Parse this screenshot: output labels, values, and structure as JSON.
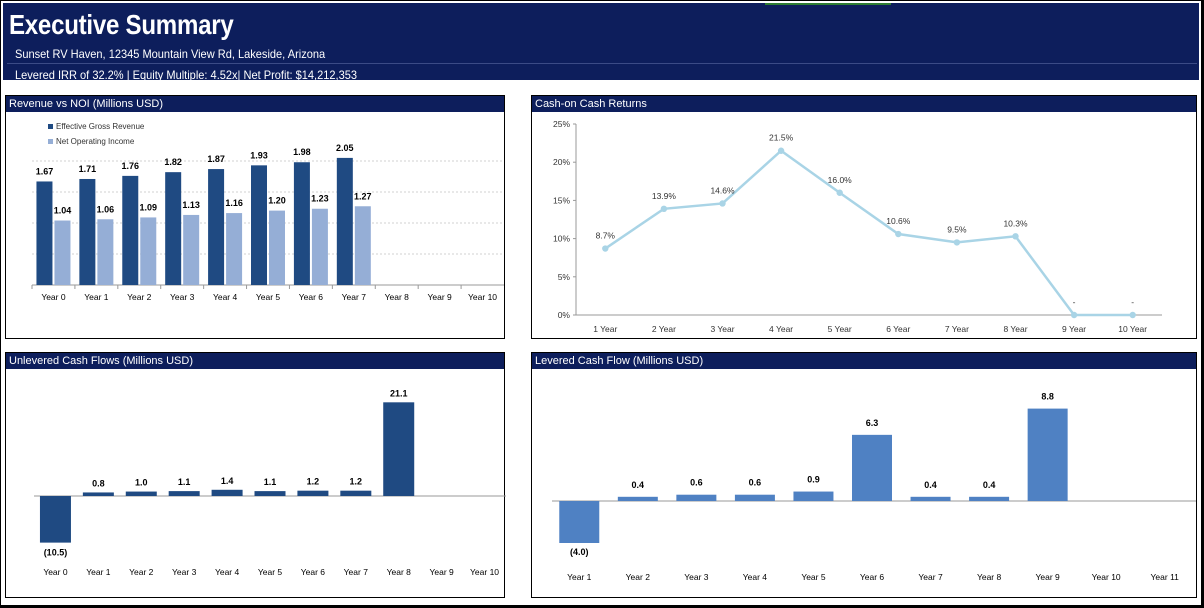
{
  "header": {
    "title": "Executive Summary",
    "address": "Sunset RV Haven, 12345 Mountain View Rd, Lakeside, Arizona",
    "metrics": "Levered IRR of 32.2% | Equity Multiple: 4.52x| Net Profit: $14,212,353"
  },
  "colors": {
    "header_bg": "#0d1e5c",
    "dark_bar": "#1f4a82",
    "light_bar": "#95aed6",
    "line": "#a9d4e6",
    "levered_bar": "#4f81c3"
  },
  "chart_data": [
    {
      "id": "revenue_noi",
      "type": "bar",
      "title": "Revenue vs NOI (Millions USD)",
      "categories": [
        "Year 0",
        "Year 1",
        "Year 2",
        "Year 3",
        "Year 4",
        "Year 5",
        "Year 6",
        "Year 7",
        "Year 8",
        "Year 9",
        "Year 10"
      ],
      "series": [
        {
          "name": "Effective Gross Revenue",
          "values": [
            1.67,
            1.71,
            1.76,
            1.82,
            1.87,
            1.93,
            1.98,
            2.05,
            null,
            null,
            null
          ],
          "labels": [
            "1.67",
            "1.71",
            "1.76",
            "1.82",
            "1.87",
            "1.93",
            "1.98",
            "2.05",
            "",
            "",
            ""
          ]
        },
        {
          "name": "Net Operating Income",
          "values": [
            1.04,
            1.06,
            1.09,
            1.13,
            1.16,
            1.2,
            1.23,
            1.27,
            null,
            null,
            null
          ],
          "labels": [
            "1.04",
            "1.06",
            "1.09",
            "1.13",
            "1.16",
            "1.20",
            "1.23",
            "1.27",
            "",
            "",
            ""
          ]
        }
      ],
      "ylim": [
        0,
        2.5
      ],
      "grid": true,
      "legend": "top-left"
    },
    {
      "id": "coc_returns",
      "type": "line",
      "title": "Cash-on Cash Returns",
      "categories": [
        "1 Year",
        "2 Year",
        "3 Year",
        "4 Year",
        "5 Year",
        "6 Year",
        "7 Year",
        "8 Year",
        "9 Year",
        "10 Year"
      ],
      "values": [
        8.7,
        13.9,
        14.6,
        21.5,
        16.0,
        10.6,
        9.5,
        10.3,
        0,
        0
      ],
      "labels": [
        "8.7%",
        "13.9%",
        "14.6%",
        "21.5%",
        "16.0%",
        "10.6%",
        "9.5%",
        "10.3%",
        "-",
        "-"
      ],
      "yticks": [
        "0%",
        "5%",
        "10%",
        "15%",
        "20%",
        "25%"
      ],
      "ylim": [
        0,
        25
      ],
      "grid": false
    },
    {
      "id": "unlevered_cf",
      "type": "bar",
      "title": "Unlevered Cash Flows (Millions USD)",
      "categories": [
        "Year 0",
        "Year 1",
        "Year 2",
        "Year 3",
        "Year 4",
        "Year 5",
        "Year 6",
        "Year 7",
        "Year 8",
        "Year 9",
        "Year 10"
      ],
      "values": [
        -10.5,
        0.8,
        1.0,
        1.1,
        1.4,
        1.1,
        1.2,
        1.2,
        21.1,
        null,
        null
      ],
      "labels": [
        "(10.5)",
        "0.8",
        "1.0",
        "1.1",
        "1.4",
        "1.1",
        "1.2",
        "1.2",
        "21.1",
        "",
        ""
      ],
      "ylim": [
        -12,
        22
      ]
    },
    {
      "id": "levered_cf",
      "type": "bar",
      "title": "Levered Cash Flow (Millions USD)",
      "categories": [
        "Year 1",
        "Year 2",
        "Year 3",
        "Year 4",
        "Year 5",
        "Year 6",
        "Year 7",
        "Year 8",
        "Year 9",
        "Year 10",
        "Year 11"
      ],
      "values": [
        -4.0,
        0.4,
        0.6,
        0.6,
        0.9,
        6.3,
        0.4,
        0.4,
        8.8,
        null,
        null
      ],
      "labels": [
        "(4.0)",
        "0.4",
        "0.6",
        "0.6",
        "0.9",
        "6.3",
        "0.4",
        "0.4",
        "8.8",
        "",
        ""
      ],
      "ylim": [
        -4.5,
        9.5
      ]
    }
  ]
}
